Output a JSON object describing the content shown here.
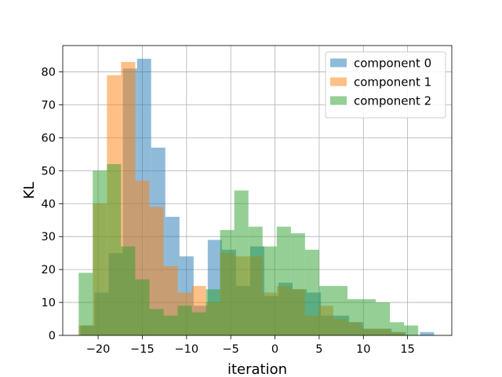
{
  "chart_data": {
    "type": "histogram",
    "xlabel": "iteration",
    "ylabel": "KL",
    "xlim": [
      -24.0,
      20.0
    ],
    "ylim": [
      0,
      88
    ],
    "xticks": [
      -20,
      -15,
      -10,
      -5,
      0,
      5,
      10,
      15
    ],
    "yticks": [
      0,
      10,
      20,
      30,
      40,
      50,
      60,
      70,
      80
    ],
    "grid": true,
    "legend_position": "top-right",
    "series": [
      {
        "name": "component 0",
        "color": "#1f77b4",
        "alpha": 0.5,
        "bins": [
          {
            "x0": -22.0,
            "x1": -20.4,
            "count": 3
          },
          {
            "x0": -20.4,
            "x1": -18.8,
            "count": 13
          },
          {
            "x0": -18.8,
            "x1": -17.2,
            "count": 25
          },
          {
            "x0": -17.2,
            "x1": -15.6,
            "count": 81
          },
          {
            "x0": -15.6,
            "x1": -14.0,
            "count": 84
          },
          {
            "x0": -14.0,
            "x1": -12.4,
            "count": 57
          },
          {
            "x0": -12.4,
            "x1": -10.8,
            "count": 36
          },
          {
            "x0": -10.8,
            "x1": -9.2,
            "count": 24
          },
          {
            "x0": -9.2,
            "x1": -7.6,
            "count": 9
          },
          {
            "x0": -7.6,
            "x1": -6.0,
            "count": 29
          },
          {
            "x0": -6.0,
            "x1": -4.4,
            "count": 26
          },
          {
            "x0": -4.4,
            "x1": -2.8,
            "count": 15
          },
          {
            "x0": -2.8,
            "x1": -1.2,
            "count": 27
          },
          {
            "x0": -1.2,
            "x1": 0.4,
            "count": 12
          },
          {
            "x0": 0.4,
            "x1": 2.0,
            "count": 16
          },
          {
            "x0": 2.0,
            "x1": 3.6,
            "count": 14
          },
          {
            "x0": 3.6,
            "x1": 5.2,
            "count": 13
          },
          {
            "x0": 5.2,
            "x1": 6.8,
            "count": 6
          },
          {
            "x0": 6.8,
            "x1": 8.4,
            "count": 6
          },
          {
            "x0": 8.4,
            "x1": 10.0,
            "count": 4
          },
          {
            "x0": 10.0,
            "x1": 11.6,
            "count": 2
          },
          {
            "x0": 11.6,
            "x1": 13.2,
            "count": 2
          },
          {
            "x0": 13.2,
            "x1": 14.8,
            "count": 1
          },
          {
            "x0": 14.8,
            "x1": 16.4,
            "count": 0
          },
          {
            "x0": 16.4,
            "x1": 18.0,
            "count": 1
          }
        ]
      },
      {
        "name": "component 1",
        "color": "#ff7f0e",
        "alpha": 0.5,
        "bins": [
          {
            "x0": -22.2,
            "x1": -20.6,
            "count": 3
          },
          {
            "x0": -20.6,
            "x1": -19.0,
            "count": 40
          },
          {
            "x0": -19.0,
            "x1": -17.4,
            "count": 79
          },
          {
            "x0": -17.4,
            "x1": -15.8,
            "count": 83
          },
          {
            "x0": -15.8,
            "x1": -14.2,
            "count": 47
          },
          {
            "x0": -14.2,
            "x1": -12.6,
            "count": 39
          },
          {
            "x0": -12.6,
            "x1": -11.0,
            "count": 21
          },
          {
            "x0": -11.0,
            "x1": -9.4,
            "count": 13
          },
          {
            "x0": -9.4,
            "x1": -7.8,
            "count": 15
          },
          {
            "x0": -7.8,
            "x1": -6.2,
            "count": 10
          },
          {
            "x0": -6.2,
            "x1": -4.6,
            "count": 25
          },
          {
            "x0": -4.6,
            "x1": -3.0,
            "count": 24
          },
          {
            "x0": -3.0,
            "x1": -1.4,
            "count": 24
          },
          {
            "x0": -1.4,
            "x1": 0.2,
            "count": 13
          },
          {
            "x0": 0.2,
            "x1": 1.8,
            "count": 15
          },
          {
            "x0": 1.8,
            "x1": 3.4,
            "count": 14
          },
          {
            "x0": 3.4,
            "x1": 5.0,
            "count": 6
          },
          {
            "x0": 5.0,
            "x1": 6.6,
            "count": 9
          },
          {
            "x0": 6.6,
            "x1": 8.2,
            "count": 5
          },
          {
            "x0": 8.2,
            "x1": 9.8,
            "count": 4
          },
          {
            "x0": 9.8,
            "x1": 11.4,
            "count": 2
          },
          {
            "x0": 11.4,
            "x1": 13.0,
            "count": 2
          },
          {
            "x0": 13.0,
            "x1": 14.6,
            "count": 1
          }
        ]
      },
      {
        "name": "component 2",
        "color": "#2ca02c",
        "alpha": 0.5,
        "bins": [
          {
            "x0": -22.2,
            "x1": -20.6,
            "count": 19
          },
          {
            "x0": -20.6,
            "x1": -19.0,
            "count": 50
          },
          {
            "x0": -19.0,
            "x1": -17.4,
            "count": 52
          },
          {
            "x0": -17.4,
            "x1": -15.8,
            "count": 27
          },
          {
            "x0": -15.8,
            "x1": -14.2,
            "count": 17
          },
          {
            "x0": -14.2,
            "x1": -12.6,
            "count": 8
          },
          {
            "x0": -12.6,
            "x1": -11.0,
            "count": 6
          },
          {
            "x0": -11.0,
            "x1": -9.4,
            "count": 9
          },
          {
            "x0": -9.4,
            "x1": -7.8,
            "count": 7
          },
          {
            "x0": -7.8,
            "x1": -6.2,
            "count": 14
          },
          {
            "x0": -6.2,
            "x1": -4.6,
            "count": 32
          },
          {
            "x0": -4.6,
            "x1": -3.0,
            "count": 44
          },
          {
            "x0": -3.0,
            "x1": -1.4,
            "count": 33
          },
          {
            "x0": -1.4,
            "x1": 0.2,
            "count": 27
          },
          {
            "x0": 0.2,
            "x1": 1.8,
            "count": 33
          },
          {
            "x0": 1.8,
            "x1": 3.4,
            "count": 31
          },
          {
            "x0": 3.4,
            "x1": 5.0,
            "count": 26
          },
          {
            "x0": 5.0,
            "x1": 6.6,
            "count": 15
          },
          {
            "x0": 6.6,
            "x1": 8.2,
            "count": 15
          },
          {
            "x0": 8.2,
            "x1": 9.8,
            "count": 11
          },
          {
            "x0": 9.8,
            "x1": 11.4,
            "count": 11
          },
          {
            "x0": 11.4,
            "x1": 13.0,
            "count": 10
          },
          {
            "x0": 13.0,
            "x1": 14.6,
            "count": 4
          },
          {
            "x0": 14.6,
            "x1": 16.2,
            "count": 3
          }
        ]
      }
    ]
  }
}
